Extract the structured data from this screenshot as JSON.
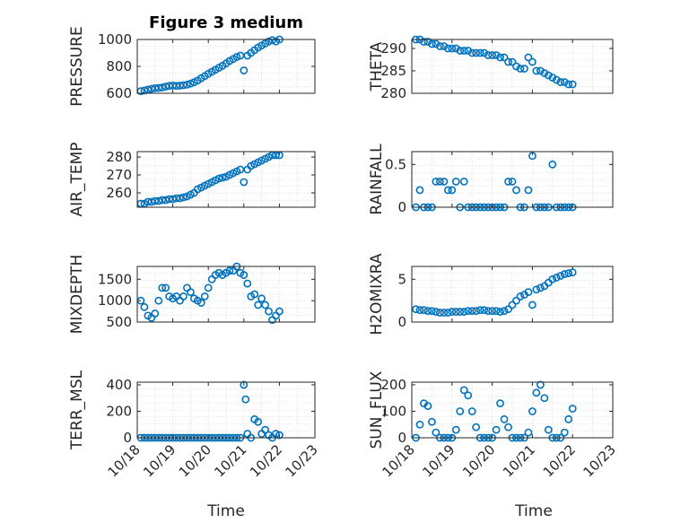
{
  "figure": {
    "title": "Figure 3 medium",
    "marker_color": "#0072bd",
    "axis_color": "#262626",
    "xlabel": "Time"
  },
  "chart_data": [
    {
      "type": "scatter",
      "ylabel": "PRESSURE",
      "ylim": [
        600,
        1000
      ],
      "yticks": [
        600,
        800,
        1000
      ],
      "xticks": [
        "10/18",
        "10/19",
        "10/20",
        "10/21",
        "10/22",
        "10/23"
      ],
      "xlim_days": [
        0,
        5
      ],
      "grid": true,
      "points": [
        [
          0.1,
          616
        ],
        [
          0.2,
          621
        ],
        [
          0.3,
          627
        ],
        [
          0.4,
          633
        ],
        [
          0.5,
          638
        ],
        [
          0.6,
          640
        ],
        [
          0.7,
          643
        ],
        [
          0.8,
          650
        ],
        [
          0.9,
          655
        ],
        [
          1.0,
          658
        ],
        [
          1.1,
          655
        ],
        [
          1.2,
          657
        ],
        [
          1.3,
          660
        ],
        [
          1.4,
          664
        ],
        [
          1.5,
          672
        ],
        [
          1.6,
          682
        ],
        [
          1.7,
          695
        ],
        [
          1.8,
          712
        ],
        [
          1.9,
          728
        ],
        [
          2.0,
          745
        ],
        [
          2.1,
          760
        ],
        [
          2.2,
          775
        ],
        [
          2.3,
          790
        ],
        [
          2.4,
          805
        ],
        [
          2.5,
          822
        ],
        [
          2.6,
          840
        ],
        [
          2.7,
          855
        ],
        [
          2.8,
          870
        ],
        [
          2.9,
          880
        ],
        [
          3.0,
          770
        ],
        [
          3.1,
          880
        ],
        [
          3.2,
          900
        ],
        [
          3.3,
          920
        ],
        [
          3.4,
          940
        ],
        [
          3.5,
          955
        ],
        [
          3.6,
          970
        ],
        [
          3.7,
          985
        ],
        [
          3.8,
          995
        ],
        [
          3.9,
          985
        ],
        [
          4.0,
          1000
        ]
      ]
    },
    {
      "type": "scatter",
      "ylabel": "THETA",
      "ylim": [
        280,
        292
      ],
      "yticks": [
        280,
        285,
        290
      ],
      "xticks": [
        "10/18",
        "10/19",
        "10/20",
        "10/21",
        "10/22",
        "10/23"
      ],
      "xlim_days": [
        0,
        5
      ],
      "grid": true,
      "points": [
        [
          0.1,
          292
        ],
        [
          0.2,
          292
        ],
        [
          0.3,
          291.5
        ],
        [
          0.4,
          291.5
        ],
        [
          0.5,
          291
        ],
        [
          0.6,
          291
        ],
        [
          0.7,
          290.5
        ],
        [
          0.8,
          290.5
        ],
        [
          0.9,
          290
        ],
        [
          1.0,
          290
        ],
        [
          1.1,
          290
        ],
        [
          1.2,
          289.5
        ],
        [
          1.3,
          289.5
        ],
        [
          1.4,
          289.5
        ],
        [
          1.5,
          289
        ],
        [
          1.6,
          289
        ],
        [
          1.7,
          289
        ],
        [
          1.8,
          289
        ],
        [
          1.9,
          288.5
        ],
        [
          2.0,
          288.5
        ],
        [
          2.1,
          288.5
        ],
        [
          2.2,
          288
        ],
        [
          2.3,
          288
        ],
        [
          2.4,
          287
        ],
        [
          2.5,
          287
        ],
        [
          2.6,
          286
        ],
        [
          2.7,
          285.5
        ],
        [
          2.8,
          285.5
        ],
        [
          2.9,
          288
        ],
        [
          3.0,
          287
        ],
        [
          3.1,
          285
        ],
        [
          3.2,
          285
        ],
        [
          3.3,
          284.5
        ],
        [
          3.4,
          284
        ],
        [
          3.5,
          283.5
        ],
        [
          3.6,
          283
        ],
        [
          3.7,
          282.5
        ],
        [
          3.8,
          282.5
        ],
        [
          3.9,
          282
        ],
        [
          4.0,
          282
        ]
      ]
    },
    {
      "type": "scatter",
      "ylabel": "AIR_TEMP",
      "ylim": [
        252,
        283
      ],
      "yticks": [
        260,
        270,
        280
      ],
      "xticks": [
        "10/18",
        "10/19",
        "10/20",
        "10/21",
        "10/22",
        "10/23"
      ],
      "xlim_days": [
        0,
        5
      ],
      "grid": true,
      "points": [
        [
          0.1,
          254
        ],
        [
          0.2,
          254
        ],
        [
          0.3,
          255
        ],
        [
          0.4,
          255
        ],
        [
          0.5,
          255.5
        ],
        [
          0.6,
          255.5
        ],
        [
          0.7,
          256
        ],
        [
          0.8,
          256
        ],
        [
          0.9,
          256.5
        ],
        [
          1.0,
          256.5
        ],
        [
          1.1,
          257
        ],
        [
          1.2,
          257
        ],
        [
          1.3,
          257.5
        ],
        [
          1.4,
          258
        ],
        [
          1.5,
          259
        ],
        [
          1.6,
          260
        ],
        [
          1.7,
          262
        ],
        [
          1.8,
          263
        ],
        [
          1.9,
          264
        ],
        [
          2.0,
          265
        ],
        [
          2.1,
          266
        ],
        [
          2.2,
          267
        ],
        [
          2.3,
          268
        ],
        [
          2.4,
          268.5
        ],
        [
          2.5,
          269
        ],
        [
          2.6,
          270
        ],
        [
          2.7,
          271
        ],
        [
          2.8,
          272
        ],
        [
          2.9,
          273
        ],
        [
          3.0,
          266
        ],
        [
          3.1,
          273
        ],
        [
          3.2,
          275
        ],
        [
          3.3,
          276
        ],
        [
          3.4,
          277
        ],
        [
          3.5,
          278
        ],
        [
          3.6,
          279
        ],
        [
          3.7,
          280
        ],
        [
          3.8,
          281
        ],
        [
          3.9,
          281
        ],
        [
          4.0,
          281
        ]
      ]
    },
    {
      "type": "scatter",
      "ylabel": "RAINFALL",
      "ylim": [
        0,
        0.65
      ],
      "yticks": [
        0,
        0.5
      ],
      "xticks": [
        "10/18",
        "10/19",
        "10/20",
        "10/21",
        "10/22",
        "10/23"
      ],
      "xlim_days": [
        0,
        5
      ],
      "grid": true,
      "points": [
        [
          0.1,
          0
        ],
        [
          0.2,
          0.2
        ],
        [
          0.3,
          0
        ],
        [
          0.4,
          0
        ],
        [
          0.5,
          0
        ],
        [
          0.6,
          0.3
        ],
        [
          0.7,
          0.3
        ],
        [
          0.8,
          0.3
        ],
        [
          0.9,
          0.2
        ],
        [
          1.0,
          0.2
        ],
        [
          1.1,
          0.3
        ],
        [
          1.2,
          0
        ],
        [
          1.3,
          0.3
        ],
        [
          1.4,
          0
        ],
        [
          1.5,
          0
        ],
        [
          1.6,
          0
        ],
        [
          1.7,
          0
        ],
        [
          1.8,
          0
        ],
        [
          1.9,
          0
        ],
        [
          2.0,
          0
        ],
        [
          2.1,
          0
        ],
        [
          2.2,
          0
        ],
        [
          2.3,
          0
        ],
        [
          2.4,
          0.3
        ],
        [
          2.5,
          0.3
        ],
        [
          2.6,
          0.2
        ],
        [
          2.7,
          0
        ],
        [
          2.8,
          0
        ],
        [
          2.9,
          0.2
        ],
        [
          3.0,
          0.6
        ],
        [
          3.1,
          0
        ],
        [
          3.2,
          0
        ],
        [
          3.3,
          0
        ],
        [
          3.4,
          0
        ],
        [
          3.5,
          0.5
        ],
        [
          3.6,
          0
        ],
        [
          3.7,
          0
        ],
        [
          3.8,
          0
        ],
        [
          3.9,
          0
        ],
        [
          4.0,
          0
        ]
      ]
    },
    {
      "type": "scatter",
      "ylabel": "MIXDEPTH",
      "ylim": [
        500,
        1800
      ],
      "yticks": [
        500,
        1000,
        1500
      ],
      "xticks": [
        "10/18",
        "10/19",
        "10/20",
        "10/21",
        "10/22",
        "10/23"
      ],
      "xlim_days": [
        0,
        5
      ],
      "grid": true,
      "points": [
        [
          0.1,
          1000
        ],
        [
          0.2,
          850
        ],
        [
          0.3,
          650
        ],
        [
          0.4,
          600
        ],
        [
          0.5,
          700
        ],
        [
          0.6,
          1000
        ],
        [
          0.7,
          1300
        ],
        [
          0.8,
          1300
        ],
        [
          0.9,
          1100
        ],
        [
          1.0,
          1050
        ],
        [
          1.1,
          1100
        ],
        [
          1.2,
          1000
        ],
        [
          1.3,
          1100
        ],
        [
          1.4,
          1300
        ],
        [
          1.5,
          1200
        ],
        [
          1.6,
          1050
        ],
        [
          1.7,
          1000
        ],
        [
          1.8,
          950
        ],
        [
          1.9,
          1100
        ],
        [
          2.0,
          1300
        ],
        [
          2.1,
          1500
        ],
        [
          2.2,
          1600
        ],
        [
          2.3,
          1650
        ],
        [
          2.4,
          1600
        ],
        [
          2.5,
          1650
        ],
        [
          2.6,
          1700
        ],
        [
          2.7,
          1700
        ],
        [
          2.8,
          1800
        ],
        [
          2.9,
          1650
        ],
        [
          3.0,
          1600
        ],
        [
          3.1,
          1400
        ],
        [
          3.2,
          1100
        ],
        [
          3.3,
          1150
        ],
        [
          3.4,
          900
        ],
        [
          3.5,
          1050
        ],
        [
          3.6,
          900
        ],
        [
          3.7,
          750
        ],
        [
          3.8,
          550
        ],
        [
          3.9,
          650
        ],
        [
          4.0,
          750
        ]
      ]
    },
    {
      "type": "scatter",
      "ylabel": "H2OMIXRA",
      "ylim": [
        0,
        6.5
      ],
      "yticks": [
        0,
        5
      ],
      "xticks": [
        "10/18",
        "10/19",
        "10/20",
        "10/21",
        "10/22",
        "10/23"
      ],
      "xlim_days": [
        0,
        5
      ],
      "grid": true,
      "points": [
        [
          0.1,
          1.5
        ],
        [
          0.2,
          1.4
        ],
        [
          0.3,
          1.4
        ],
        [
          0.4,
          1.3
        ],
        [
          0.5,
          1.3
        ],
        [
          0.6,
          1.2
        ],
        [
          0.7,
          1.1
        ],
        [
          0.8,
          1.1
        ],
        [
          0.9,
          1.1
        ],
        [
          1.0,
          1.2
        ],
        [
          1.1,
          1.2
        ],
        [
          1.2,
          1.2
        ],
        [
          1.3,
          1.2
        ],
        [
          1.4,
          1.3
        ],
        [
          1.5,
          1.3
        ],
        [
          1.6,
          1.3
        ],
        [
          1.7,
          1.4
        ],
        [
          1.8,
          1.4
        ],
        [
          1.9,
          1.3
        ],
        [
          2.0,
          1.3
        ],
        [
          2.1,
          1.3
        ],
        [
          2.2,
          1.2
        ],
        [
          2.3,
          1.3
        ],
        [
          2.4,
          1.5
        ],
        [
          2.5,
          2.0
        ],
        [
          2.6,
          2.5
        ],
        [
          2.7,
          3.0
        ],
        [
          2.8,
          3.2
        ],
        [
          2.9,
          3.5
        ],
        [
          3.0,
          2.0
        ],
        [
          3.1,
          3.8
        ],
        [
          3.2,
          4.0
        ],
        [
          3.3,
          4.2
        ],
        [
          3.4,
          4.6
        ],
        [
          3.5,
          5.0
        ],
        [
          3.6,
          5.2
        ],
        [
          3.7,
          5.4
        ],
        [
          3.8,
          5.6
        ],
        [
          3.9,
          5.7
        ],
        [
          4.0,
          5.8
        ]
      ]
    },
    {
      "type": "scatter",
      "ylabel": "TERR_MSL",
      "ylim": [
        0,
        420
      ],
      "yticks": [
        0,
        200,
        400
      ],
      "xticks": [
        "10/18",
        "10/19",
        "10/20",
        "10/21",
        "10/22",
        "10/23"
      ],
      "xlim_days": [
        0,
        5
      ],
      "grid": true,
      "points": [
        [
          0.1,
          0
        ],
        [
          0.2,
          0
        ],
        [
          0.3,
          0
        ],
        [
          0.4,
          0
        ],
        [
          0.5,
          0
        ],
        [
          0.6,
          0
        ],
        [
          0.7,
          0
        ],
        [
          0.8,
          0
        ],
        [
          0.9,
          0
        ],
        [
          1.0,
          0
        ],
        [
          1.1,
          0
        ],
        [
          1.2,
          0
        ],
        [
          1.3,
          0
        ],
        [
          1.4,
          0
        ],
        [
          1.5,
          0
        ],
        [
          1.6,
          0
        ],
        [
          1.7,
          0
        ],
        [
          1.8,
          0
        ],
        [
          1.9,
          0
        ],
        [
          2.0,
          0
        ],
        [
          2.1,
          0
        ],
        [
          2.2,
          0
        ],
        [
          2.3,
          0
        ],
        [
          2.4,
          0
        ],
        [
          2.5,
          0
        ],
        [
          2.6,
          0
        ],
        [
          2.7,
          0
        ],
        [
          2.8,
          0
        ],
        [
          2.9,
          0
        ],
        [
          3.0,
          400
        ],
        [
          3.05,
          290
        ],
        [
          3.1,
          30
        ],
        [
          3.2,
          0
        ],
        [
          3.3,
          140
        ],
        [
          3.4,
          120
        ],
        [
          3.5,
          30
        ],
        [
          3.6,
          60
        ],
        [
          3.7,
          20
        ],
        [
          3.8,
          0
        ],
        [
          3.9,
          30
        ],
        [
          4.0,
          20
        ]
      ]
    },
    {
      "type": "scatter",
      "ylabel": "SUN_FLUX",
      "ylim": [
        0,
        210
      ],
      "yticks": [
        0,
        100,
        200
      ],
      "xticks": [
        "10/18",
        "10/19",
        "10/20",
        "10/21",
        "10/22",
        "10/23"
      ],
      "xlim_days": [
        0,
        5
      ],
      "grid": true,
      "points": [
        [
          0.1,
          0
        ],
        [
          0.2,
          50
        ],
        [
          0.3,
          130
        ],
        [
          0.4,
          120
        ],
        [
          0.5,
          60
        ],
        [
          0.6,
          20
        ],
        [
          0.7,
          0
        ],
        [
          0.8,
          0
        ],
        [
          0.9,
          0
        ],
        [
          1.0,
          0
        ],
        [
          1.1,
          30
        ],
        [
          1.2,
          100
        ],
        [
          1.3,
          180
        ],
        [
          1.4,
          160
        ],
        [
          1.5,
          100
        ],
        [
          1.6,
          40
        ],
        [
          1.7,
          0
        ],
        [
          1.8,
          0
        ],
        [
          1.9,
          0
        ],
        [
          2.0,
          0
        ],
        [
          2.1,
          30
        ],
        [
          2.2,
          130
        ],
        [
          2.3,
          70
        ],
        [
          2.4,
          40
        ],
        [
          2.5,
          0
        ],
        [
          2.6,
          0
        ],
        [
          2.7,
          0
        ],
        [
          2.8,
          0
        ],
        [
          2.9,
          20
        ],
        [
          3.0,
          100
        ],
        [
          3.1,
          170
        ],
        [
          3.2,
          200
        ],
        [
          3.3,
          150
        ],
        [
          3.4,
          30
        ],
        [
          3.5,
          0
        ],
        [
          3.6,
          0
        ],
        [
          3.7,
          0
        ],
        [
          3.8,
          20
        ],
        [
          3.9,
          70
        ],
        [
          4.0,
          110
        ]
      ]
    }
  ]
}
